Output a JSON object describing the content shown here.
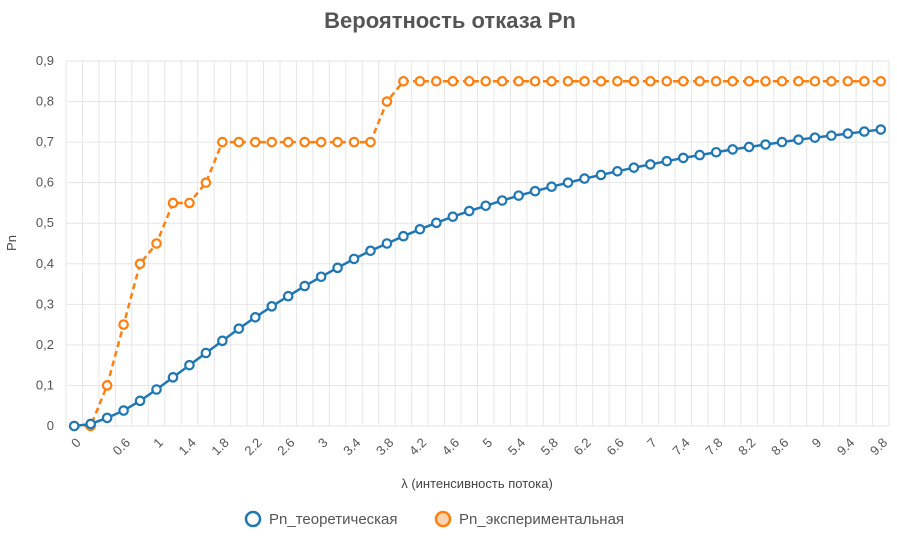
{
  "chart_data": {
    "type": "line",
    "title": "Вероятность отказа Pn",
    "xlabel": "λ (интенсивность потока)",
    "ylabel": "Pn",
    "ylim": [
      0,
      0.9
    ],
    "yticks": [
      "0",
      "0,1",
      "0,2",
      "0,3",
      "0,4",
      "0,5",
      "0,6",
      "0,7",
      "0,8",
      "0,9"
    ],
    "grid": true,
    "legend": "bottom",
    "x": [
      "0",
      "0.2",
      "0.4",
      "0.6",
      "0.8",
      "1",
      "1.2",
      "1.4",
      "1.6",
      "1.8",
      "2",
      "2.2",
      "2.4",
      "2.6",
      "2.8",
      "3",
      "3.2",
      "3.4",
      "3.6",
      "3.8",
      "4",
      "4.2",
      "4.4",
      "4.6",
      "4.8",
      "5",
      "5.2",
      "5.4",
      "5.6",
      "5.8",
      "6",
      "6.2",
      "6.4",
      "6.6",
      "6.8",
      "7",
      "7.2",
      "7.4",
      "7.6",
      "7.8",
      "8",
      "8.2",
      "8.4",
      "8.6",
      "8.8",
      "9",
      "9.2",
      "9.4",
      "9.6",
      "9.8"
    ],
    "x_tick_labels": [
      "0",
      "0.6",
      "1",
      "1.4",
      "1.8",
      "2.2",
      "2.6",
      "3",
      "3.4",
      "3.8",
      "4.2",
      "4.6",
      "5",
      "5.4",
      "5.8",
      "6.2",
      "6.6",
      "7",
      "7.4",
      "7.8",
      "8.2",
      "8.6",
      "9",
      "9.4",
      "9.8"
    ],
    "series": [
      {
        "name": "Pn_теоретическая",
        "color": "#1f77b4",
        "line_style": "solid",
        "values": [
          0,
          0.005,
          0.02,
          0.038,
          0.062,
          0.09,
          0.12,
          0.15,
          0.18,
          0.21,
          0.24,
          0.268,
          0.295,
          0.32,
          0.345,
          0.368,
          0.39,
          0.412,
          0.432,
          0.45,
          0.468,
          0.485,
          0.501,
          0.516,
          0.53,
          0.543,
          0.556,
          0.568,
          0.579,
          0.59,
          0.6,
          0.61,
          0.619,
          0.628,
          0.637,
          0.645,
          0.653,
          0.661,
          0.668,
          0.675,
          0.682,
          0.688,
          0.694,
          0.7,
          0.706,
          0.711,
          0.716,
          0.721,
          0.726,
          0.731
        ]
      },
      {
        "name": "Pn_экспериментальная",
        "color": "#ff7f0e",
        "line_style": "dashed",
        "values": [
          0,
          0,
          0.1,
          0.25,
          0.4,
          0.45,
          0.55,
          0.55,
          0.6,
          0.7,
          0.7,
          0.7,
          0.7,
          0.7,
          0.7,
          0.7,
          0.7,
          0.7,
          0.7,
          0.8,
          0.85,
          0.85,
          0.85,
          0.85,
          0.85,
          0.85,
          0.85,
          0.85,
          0.85,
          0.85,
          0.85,
          0.85,
          0.85,
          0.85,
          0.85,
          0.85,
          0.85,
          0.85,
          0.85,
          0.85,
          0.85,
          0.85,
          0.85,
          0.85,
          0.85,
          0.85,
          0.85,
          0.85,
          0.85,
          0.85
        ]
      }
    ]
  }
}
